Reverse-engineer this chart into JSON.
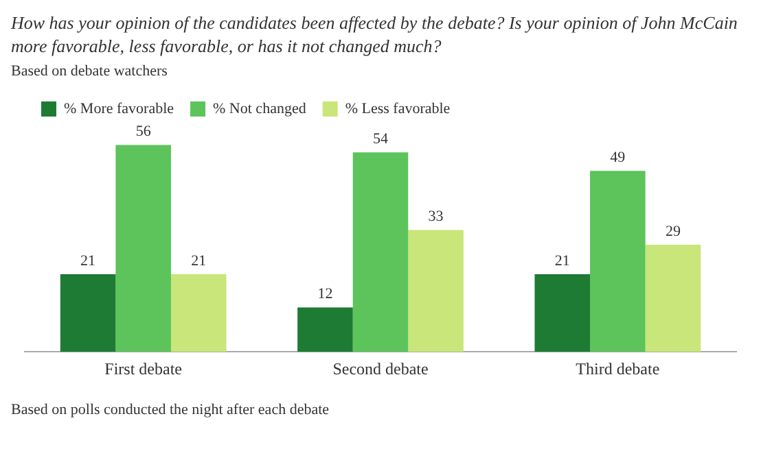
{
  "chart_data": {
    "type": "bar",
    "title": "How has your opinion of the candidates been affected by the debate? Is your opinion of John McCain more favorable, less favorable, or has it not changed much?",
    "subtitle": "Based on debate watchers",
    "annotations": [
      "Based on polls conducted the night after each debate"
    ],
    "categories": [
      "First debate",
      "Second debate",
      "Third debate"
    ],
    "series": [
      {
        "name": "% More favorable",
        "color": "#1e7b34",
        "values": [
          21,
          12,
          21
        ]
      },
      {
        "name": "% Not changed",
        "color": "#5cc45a",
        "values": [
          56,
          54,
          49
        ]
      },
      {
        "name": "% Less favorable",
        "color": "#c8e67a",
        "values": [
          21,
          33,
          29
        ]
      }
    ],
    "data_labels": true,
    "legend": "top left",
    "grid": false
  }
}
